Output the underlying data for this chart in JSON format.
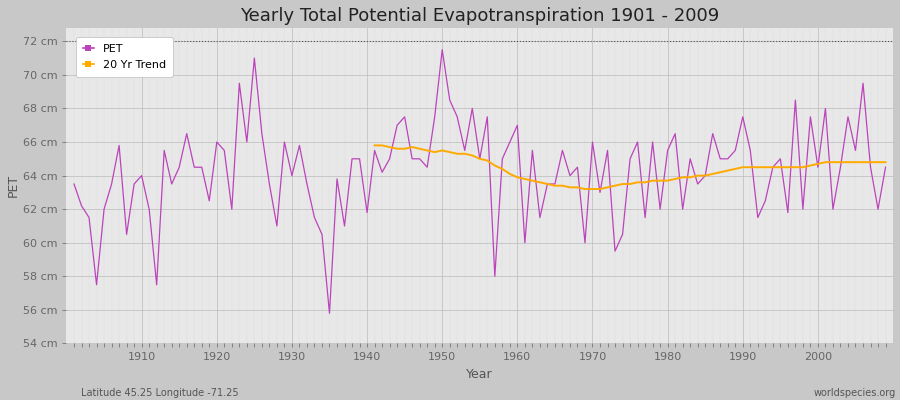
{
  "title": "Yearly Total Potential Evapotranspiration 1901 - 2009",
  "xlabel": "Year",
  "ylabel": "PET",
  "subtitle_left": "Latitude 45.25 Longitude -71.25",
  "subtitle_right": "worldspecies.org",
  "pet_color": "#bb44bb",
  "trend_color": "#ffaa00",
  "fig_bg_color": "#c8c8c8",
  "plot_bg_color": "#e8e8e8",
  "ylim_bottom": 54,
  "ylim_top": 72.8,
  "yticks": [
    54,
    56,
    58,
    60,
    62,
    64,
    66,
    68,
    70,
    72
  ],
  "ytick_labels": [
    "54 cm",
    "56 cm",
    "58 cm",
    "60 cm",
    "62 cm",
    "64 cm",
    "66 cm",
    "68 cm",
    "70 cm",
    "72 cm"
  ],
  "xlim": [
    1900,
    2010
  ],
  "xticks": [
    1910,
    1920,
    1930,
    1940,
    1950,
    1960,
    1970,
    1980,
    1990,
    2000
  ],
  "years": [
    1901,
    1902,
    1903,
    1904,
    1905,
    1906,
    1907,
    1908,
    1909,
    1910,
    1911,
    1912,
    1913,
    1914,
    1915,
    1916,
    1917,
    1918,
    1919,
    1920,
    1921,
    1922,
    1923,
    1924,
    1925,
    1926,
    1927,
    1928,
    1929,
    1930,
    1931,
    1932,
    1933,
    1934,
    1935,
    1936,
    1937,
    1938,
    1939,
    1940,
    1941,
    1942,
    1943,
    1944,
    1945,
    1946,
    1947,
    1948,
    1949,
    1950,
    1951,
    1952,
    1953,
    1954,
    1955,
    1956,
    1957,
    1958,
    1959,
    1960,
    1961,
    1962,
    1963,
    1964,
    1965,
    1966,
    1967,
    1968,
    1969,
    1970,
    1971,
    1972,
    1973,
    1974,
    1975,
    1976,
    1977,
    1978,
    1979,
    1980,
    1981,
    1982,
    1983,
    1984,
    1985,
    1986,
    1987,
    1988,
    1989,
    1990,
    1991,
    1992,
    1993,
    1994,
    1995,
    1996,
    1997,
    1998,
    1999,
    2000,
    2001,
    2002,
    2003,
    2004,
    2005,
    2006,
    2007,
    2008,
    2009
  ],
  "pet_values": [
    63.5,
    62.2,
    61.5,
    57.5,
    62.0,
    63.5,
    65.8,
    60.5,
    63.5,
    64.0,
    62.0,
    57.5,
    65.5,
    63.5,
    64.5,
    66.5,
    64.5,
    64.5,
    62.5,
    66.0,
    65.5,
    62.0,
    69.5,
    66.0,
    71.0,
    66.5,
    63.5,
    61.0,
    66.0,
    64.0,
    65.8,
    63.5,
    61.5,
    60.5,
    55.8,
    63.8,
    61.0,
    65.0,
    65.0,
    61.8,
    65.5,
    64.2,
    65.0,
    67.0,
    67.5,
    65.0,
    65.0,
    64.5,
    67.5,
    71.5,
    68.5,
    67.5,
    65.5,
    68.0,
    65.0,
    67.5,
    58.0,
    65.0,
    66.0,
    67.0,
    60.0,
    65.5,
    61.5,
    63.5,
    63.5,
    65.5,
    64.0,
    64.5,
    60.0,
    66.0,
    63.0,
    65.5,
    59.5,
    60.5,
    65.0,
    66.0,
    61.5,
    66.0,
    62.0,
    65.5,
    66.5,
    62.0,
    65.0,
    63.5,
    64.0,
    66.5,
    65.0,
    65.0,
    65.5,
    67.5,
    65.5,
    61.5,
    62.5,
    64.5,
    65.0,
    61.8,
    68.5,
    62.0,
    67.5,
    64.5,
    68.0,
    62.0,
    64.5,
    67.5,
    65.5,
    69.5,
    64.5,
    62.0,
    64.5
  ],
  "trend_values_x": [
    1941,
    1942,
    1943,
    1944,
    1945,
    1946,
    1947,
    1948,
    1949,
    1950,
    1951,
    1952,
    1953,
    1954,
    1955,
    1956,
    1957,
    1958,
    1959,
    1960,
    1961,
    1962,
    1963,
    1964,
    1965,
    1966,
    1967,
    1968,
    1969,
    1970,
    1971,
    1972,
    1973,
    1974,
    1975,
    1976,
    1977,
    1978,
    1979,
    1980,
    1981,
    1982,
    1983,
    1984,
    1985,
    1986,
    1987,
    1988,
    1989,
    1990,
    1991,
    1992,
    1993,
    1994,
    1995,
    1996,
    1997,
    1998,
    1999,
    2000,
    2001,
    2002,
    2003,
    2004,
    2005,
    2006,
    2007,
    2008,
    2009
  ],
  "trend_values_y": [
    65.8,
    65.8,
    65.7,
    65.6,
    65.6,
    65.7,
    65.6,
    65.5,
    65.4,
    65.5,
    65.4,
    65.3,
    65.3,
    65.2,
    65.0,
    64.9,
    64.6,
    64.4,
    64.1,
    63.9,
    63.8,
    63.7,
    63.6,
    63.5,
    63.4,
    63.4,
    63.3,
    63.3,
    63.2,
    63.2,
    63.2,
    63.3,
    63.4,
    63.5,
    63.5,
    63.6,
    63.6,
    63.7,
    63.7,
    63.7,
    63.8,
    63.9,
    63.9,
    64.0,
    64.0,
    64.1,
    64.2,
    64.3,
    64.4,
    64.5,
    64.5,
    64.5,
    64.5,
    64.5,
    64.5,
    64.5,
    64.5,
    64.5,
    64.6,
    64.7,
    64.8,
    64.8,
    64.8,
    64.8,
    64.8,
    64.8,
    64.8,
    64.8,
    64.8
  ],
  "dotted_line_y": 72,
  "title_fontsize": 13,
  "label_fontsize": 9,
  "tick_fontsize": 8,
  "legend_fontsize": 8
}
